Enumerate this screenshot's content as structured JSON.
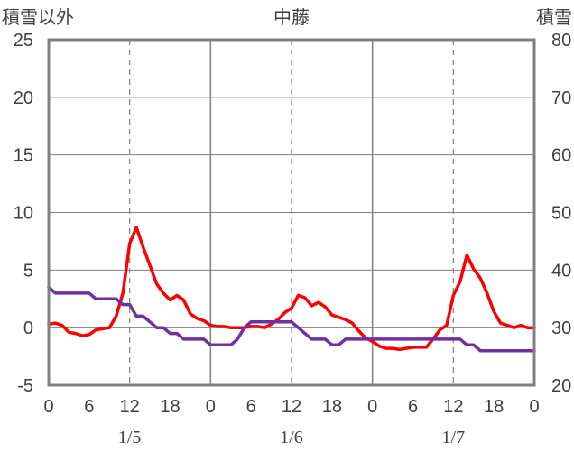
{
  "chart_data": {
    "type": "line",
    "title": "中藤",
    "left_axis_title": "積雪以外",
    "right_axis_title": "積雪",
    "left_axis": {
      "range": [
        -5,
        25
      ],
      "ticks": [
        "-5",
        "0",
        "5",
        "10",
        "15",
        "20",
        "25"
      ]
    },
    "right_axis": {
      "range": [
        20,
        80
      ],
      "ticks": [
        "20",
        "30",
        "40",
        "50",
        "60",
        "70",
        "80"
      ]
    },
    "x_range_hours": [
      0,
      72
    ],
    "x_ticks": [
      "0",
      "6",
      "12",
      "18",
      "0",
      "6",
      "12",
      "18",
      "0",
      "6",
      "12",
      "18",
      "0"
    ],
    "date_labels": [
      "1/5",
      "1/6",
      "1/7"
    ],
    "grid": {
      "day_lines_solid": true,
      "noon_lines_dashed": true,
      "zero_line": true
    },
    "colors": {
      "red_series": "#ff0000",
      "purple_series": "#7030a0",
      "grid": "#808080",
      "frame": "#808080"
    },
    "series": [
      {
        "axis": "left",
        "color": "#ff0000",
        "x": [
          0,
          1,
          2,
          3,
          4,
          5,
          6,
          7,
          8,
          9,
          10,
          11,
          12,
          13,
          14,
          15,
          16,
          17,
          18,
          19,
          20,
          21,
          22,
          23,
          24,
          25,
          26,
          27,
          28,
          29,
          30,
          31,
          32,
          33,
          34,
          35,
          36,
          37,
          38,
          39,
          40,
          41,
          42,
          43,
          44,
          45,
          46,
          47,
          48,
          49,
          50,
          51,
          52,
          53,
          54,
          55,
          56,
          57,
          58,
          59,
          60,
          61,
          62,
          63,
          64,
          65,
          66,
          67,
          68,
          69,
          70,
          71,
          72
        ],
        "values": [
          0.3,
          0.4,
          0.2,
          -0.4,
          -0.5,
          -0.7,
          -0.6,
          -0.2,
          -0.1,
          0.0,
          1.0,
          3.0,
          7.3,
          8.7,
          7.0,
          5.4,
          3.8,
          3.0,
          2.4,
          2.8,
          2.4,
          1.2,
          0.8,
          0.6,
          0.2,
          0.1,
          0.1,
          0.0,
          0.0,
          0.0,
          0.1,
          0.1,
          0.0,
          0.3,
          0.7,
          1.3,
          1.7,
          2.8,
          2.6,
          1.9,
          2.2,
          1.8,
          1.1,
          0.9,
          0.7,
          0.4,
          -0.3,
          -0.9,
          -1.2,
          -1.6,
          -1.8,
          -1.8,
          -1.9,
          -1.8,
          -1.7,
          -1.7,
          -1.7,
          -1.0,
          -0.2,
          0.2,
          2.8,
          4.0,
          6.3,
          5.1,
          4.3,
          3.0,
          1.4,
          0.4,
          0.2,
          0.0,
          0.2,
          0.0,
          0.0
        ]
      },
      {
        "axis": "right",
        "color": "#7030a0",
        "x": [
          0,
          1,
          6,
          7,
          10,
          11,
          12,
          13,
          14,
          15,
          16,
          17,
          18,
          19,
          20,
          21,
          22,
          23,
          24,
          25,
          26,
          27,
          28,
          29,
          30,
          31,
          32,
          33,
          34,
          35,
          36,
          37,
          38,
          39,
          40,
          41,
          42,
          43,
          44,
          45,
          46,
          47,
          48,
          49,
          50,
          51,
          52,
          53,
          54,
          55,
          56,
          57,
          58,
          59,
          60,
          61,
          62,
          63,
          64,
          65,
          66,
          67,
          68,
          69,
          70,
          71,
          72
        ],
        "values": [
          37,
          36,
          36,
          35,
          35,
          34,
          34,
          32,
          32,
          31,
          30,
          30,
          29,
          29,
          28,
          28,
          28,
          28,
          27,
          27,
          27,
          27,
          28,
          30,
          31,
          31,
          31,
          31,
          31,
          31,
          31,
          30,
          29,
          28,
          28,
          28,
          27,
          27,
          28,
          28,
          28,
          28,
          28,
          28,
          28,
          28,
          28,
          28,
          28,
          28,
          28,
          28,
          28,
          28,
          28,
          28,
          27,
          27,
          26,
          26,
          26,
          26,
          26,
          26,
          26,
          26,
          26
        ]
      }
    ]
  }
}
